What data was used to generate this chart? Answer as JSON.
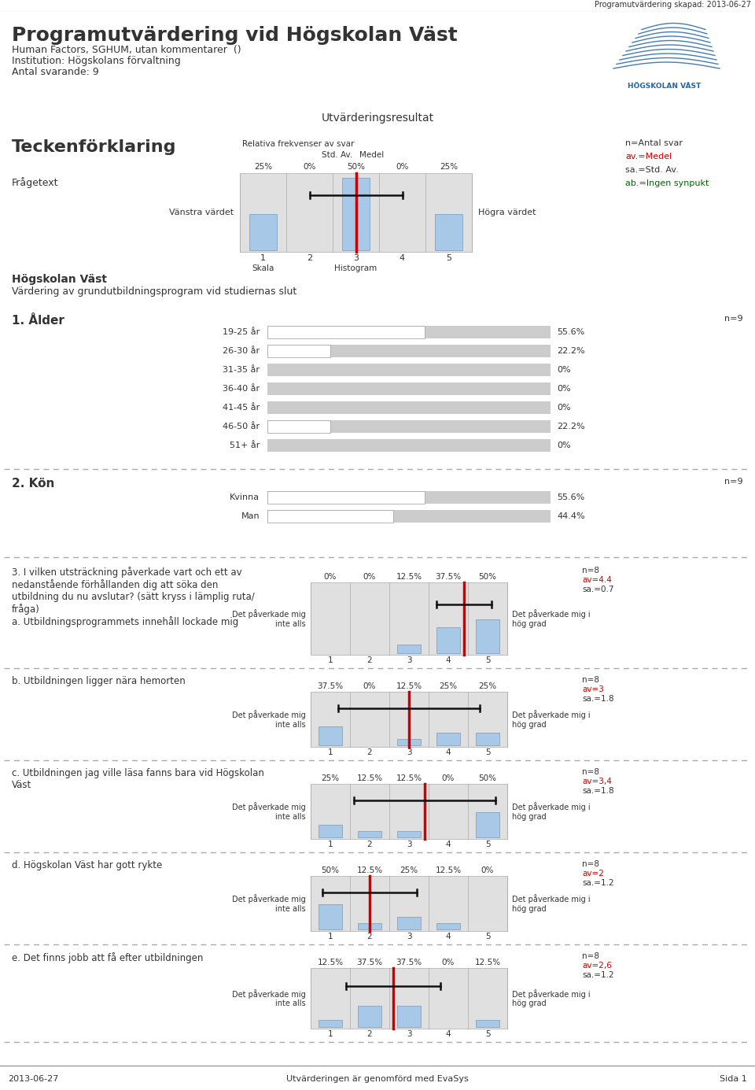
{
  "title_main": "Programutvärdering vid Högskolan Väst",
  "subtitle1": "Human Factors, SGHUM, utan kommentarer  ()",
  "subtitle2": "Institution: Högskolans förvaltning",
  "subtitle3": "Antal svarande: 9",
  "header_right": "Programutvärdering skapad: 2013-06-27",
  "eval_results_header": "Utvärderingsresultat",
  "legend_title": "Teckenförklaring",
  "legend_frage": "Frågetext",
  "legend_left": "Vänstra värdet",
  "legend_right": "Högra värdet",
  "legend_scale": "Skala",
  "legend_histogram": "Histogram",
  "legend_rel_freq": "Relativa frekvenser av svar",
  "legend_std_label": "Std. Av.",
  "legend_medel_label": "Medel",
  "legend_note1": "n=Antal svar",
  "legend_note2": "av.=Medel",
  "legend_note3": "sa.=Std. Av.",
  "legend_note4": "ab.=Ingen synpukt",
  "section1_title": "Högskolan Väst",
  "section1_subtitle": "Värdering av grundutbildningsprogram vid studiernas slut",
  "q1_title": "1. Ålder",
  "q1_n": "n=9",
  "q1_categories": [
    "19-25 år",
    "26-30 år",
    "31-35 år",
    "36-40 år",
    "41-45 år",
    "46-50 år",
    "51+ år"
  ],
  "q1_values": [
    55.6,
    22.2,
    0,
    0,
    0,
    22.2,
    0
  ],
  "q2_title": "2. Kön",
  "q2_n": "n=9",
  "q2_categories": [
    "Kvinna",
    "Man"
  ],
  "q2_values": [
    55.6,
    44.4
  ],
  "q3_title": "3. I vilken utsträckning påverkade vart och ett av\nnedanstående förhållanden dig att söka den\nutbildning du nu avslutar? (sätt kryss i lämplig ruta/\nfråga)\na. Utbildningsprogrammets innehåll lockade mig",
  "q3_n": "n=8",
  "q3_av": "av=4.4",
  "q3_sa": "sa.=0.7",
  "q3_left_label": "Det påverkade mig\ninte alls",
  "q3_right_label": "Det påverkade mig i\nhög grad",
  "q3_percentages": [
    "0%",
    "0%",
    "12.5%",
    "37.5%",
    "50%"
  ],
  "q3_hist": [
    0,
    0,
    12.5,
    37.5,
    50
  ],
  "q3_mean": 4.4,
  "q3_std": 0.7,
  "q4_title": "b. Utbildningen ligger nära hemorten",
  "q4_n": "n=8",
  "q4_av": "av=3",
  "q4_sa": "sa.=1.8",
  "q4_left_label": "Det påverkade mig\ninte alls",
  "q4_right_label": "Det påverkade mig i\nhög grad",
  "q4_percentages": [
    "37.5%",
    "0%",
    "12.5%",
    "25%",
    "25%"
  ],
  "q4_hist": [
    37.5,
    0,
    12.5,
    25,
    25
  ],
  "q4_mean": 3,
  "q4_std": 1.8,
  "q5_title": "c. Utbildningen jag ville läsa fanns bara vid Högskolan\nVäst",
  "q5_n": "n=8",
  "q5_av": "av=3,4",
  "q5_sa": "sa.=1.8",
  "q5_left_label": "Det påverkade mig\ninte alls",
  "q5_right_label": "Det påverkade mig i\nhög grad",
  "q5_percentages": [
    "25%",
    "12.5%",
    "12.5%",
    "0%",
    "50%"
  ],
  "q5_hist": [
    25,
    12.5,
    12.5,
    0,
    50
  ],
  "q5_mean": 3.4,
  "q5_std": 1.8,
  "q6_title": "d. Högskolan Väst har gott rykte",
  "q6_n": "n=8",
  "q6_av": "av=2",
  "q6_sa": "sa.=1.2",
  "q6_left_label": "Det påverkade mig\ninte alls",
  "q6_right_label": "Det påverkade mig i\nhög grad",
  "q6_percentages": [
    "50%",
    "12.5%",
    "25%",
    "12.5%",
    "0%"
  ],
  "q6_hist": [
    50,
    12.5,
    25,
    12.5,
    0
  ],
  "q6_mean": 2,
  "q6_std": 1.2,
  "q7_title": "e. Det finns jobb att få efter utbildningen",
  "q7_n": "n=8",
  "q7_av": "av=2,6",
  "q7_sa": "sa.=1.2",
  "q7_left_label": "Det påverkade mig\ninte alls",
  "q7_right_label": "Det påverkade mig i\nhög grad",
  "q7_percentages": [
    "12.5%",
    "37.5%",
    "37.5%",
    "0%",
    "12.5%"
  ],
  "q7_hist": [
    12.5,
    37.5,
    37.5,
    0,
    12.5
  ],
  "q7_mean": 2.6,
  "q7_std": 1.2,
  "footer_left": "2013-06-27",
  "footer_center": "Utvärderingen är genomförd med EvaSys",
  "footer_right": "Sida 1",
  "bg_blue": "#d6e8f5",
  "bg_gray_section": "#d4d4d4",
  "bg_gray_section2": "#e4e4e4",
  "bar_fill": "#ffffff",
  "bar_bg": "#cccccc",
  "hist_bar_color": "#a8c8e8",
  "mean_line_color": "#cc0000",
  "std_line_color": "#111111",
  "text_dark": "#333333",
  "text_red": "#cc0000",
  "text_green": "#006600"
}
